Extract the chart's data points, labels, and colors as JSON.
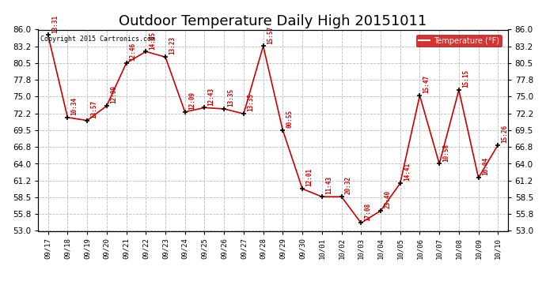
{
  "title": "Outdoor Temperature Daily High 20151011",
  "copyright": "Copyright 2015 Cartronics.com",
  "legend_label": "Temperature (°F)",
  "dates": [
    "09/17",
    "09/18",
    "09/19",
    "09/20",
    "09/21",
    "09/22",
    "09/23",
    "09/24",
    "09/25",
    "09/26",
    "09/27",
    "09/28",
    "09/29",
    "09/30",
    "10/01",
    "10/02",
    "10/03",
    "10/04",
    "10/05",
    "10/06",
    "10/07",
    "10/08",
    "10/09",
    "10/10"
  ],
  "values": [
    85.1,
    71.6,
    71.1,
    73.5,
    80.5,
    82.4,
    81.5,
    72.5,
    73.2,
    73.0,
    72.2,
    83.3,
    69.5,
    59.9,
    58.6,
    58.6,
    54.3,
    56.3,
    60.8,
    75.2,
    64.0,
    76.1,
    61.7,
    67.1
  ],
  "time_labels": [
    "13:31",
    "10:34",
    "13:57",
    "12:09",
    "12:46",
    "14:05",
    "13:23",
    "12:09",
    "12:43",
    "13:35",
    "13:35",
    "15:57",
    "00:55",
    "12:01",
    "11:43",
    "20:32",
    "17:08",
    "23:40",
    "14:41",
    "15:47",
    "10:58",
    "15:15",
    "16:04",
    "15:26"
  ],
  "ylim": [
    53.0,
    86.0
  ],
  "yticks": [
    53.0,
    55.8,
    58.5,
    61.2,
    64.0,
    66.8,
    69.5,
    72.2,
    75.0,
    77.8,
    80.5,
    83.2,
    86.0
  ],
  "line_color": "#cc0000",
  "marker_color": "#000000",
  "label_color": "#cc0000",
  "background_color": "#ffffff",
  "grid_color": "#bbbbbb",
  "title_fontsize": 13,
  "legend_bg": "#cc0000",
  "legend_text_color": "#ffffff"
}
